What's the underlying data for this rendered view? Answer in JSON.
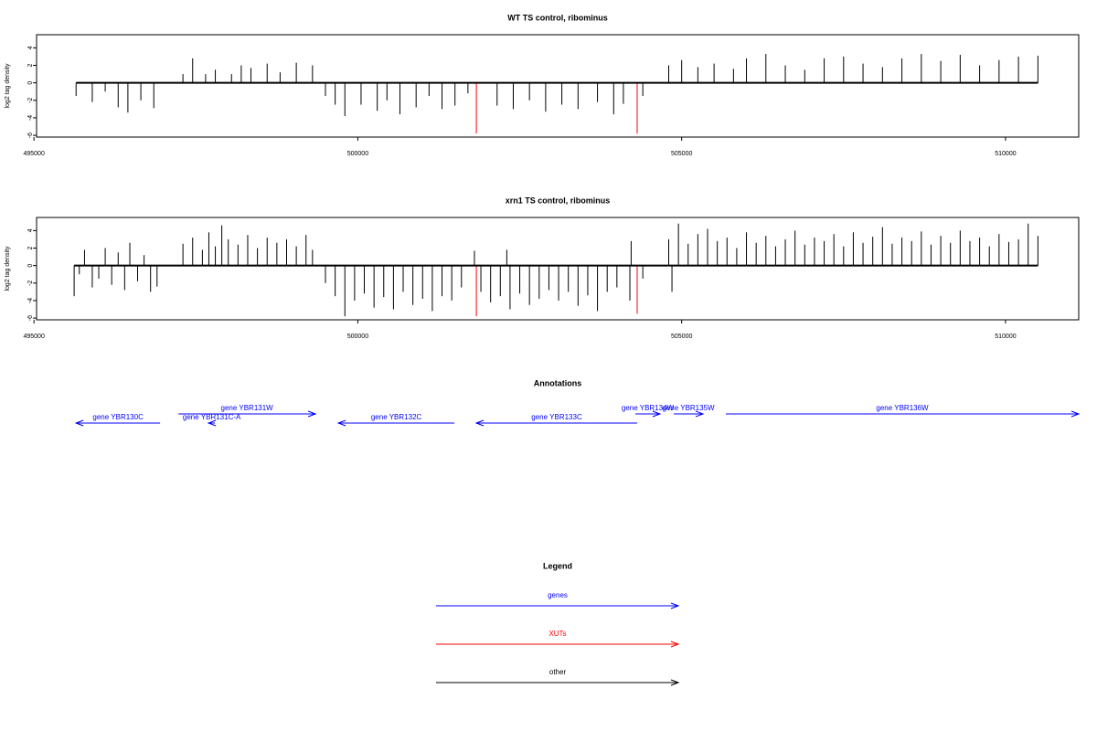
{
  "chart_data": [
    {
      "type": "bar",
      "title": "WT TS control, ribominus",
      "y_label": "log2 tag density",
      "xlim": [
        495040,
        511130
      ],
      "xticks": [
        495000,
        500000,
        505000,
        510000
      ],
      "ylim": [
        -6.2,
        5.5
      ],
      "yticks": [
        -6,
        -4,
        -2,
        0,
        2,
        4
      ],
      "series": [
        {
          "color": "#000000",
          "x": [
            495650,
            495900,
            496100,
            496300,
            496450,
            496650,
            496850,
            497300,
            497450,
            497650,
            497800,
            498050,
            498200,
            498350,
            498600,
            498800,
            499050,
            499300,
            499500,
            499650,
            499800,
            500050,
            500300,
            500450,
            500650,
            500900,
            501100,
            501300,
            501500,
            501700,
            502150,
            502400,
            502650,
            502900,
            503150,
            503400,
            503700,
            503950,
            504100,
            504400,
            504800,
            505000,
            505250,
            505500,
            505800,
            506000,
            506300,
            506600,
            506900,
            507200,
            507500,
            507800,
            508100,
            508400,
            508700,
            509000,
            509300,
            509600,
            509900,
            510200,
            510500
          ],
          "values": [
            -1.5,
            -2.2,
            -1.0,
            -2.8,
            -3.4,
            -2.0,
            -2.9,
            1.0,
            2.8,
            1.0,
            1.5,
            1.0,
            2.0,
            1.7,
            2.2,
            1.2,
            2.3,
            2.0,
            -1.5,
            -2.5,
            -3.8,
            -2.5,
            -3.2,
            -2.0,
            -3.6,
            -2.8,
            -1.5,
            -3.0,
            -2.6,
            -1.2,
            -2.6,
            -3.0,
            -2.0,
            -3.3,
            -2.5,
            -3.0,
            -2.2,
            -3.6,
            -2.4,
            -1.5,
            2.0,
            2.6,
            1.8,
            2.2,
            1.6,
            2.8,
            3.3,
            2.0,
            1.5,
            2.8,
            3.0,
            2.2,
            1.8,
            2.8,
            3.3,
            2.5,
            3.2,
            2.0,
            2.6,
            3.0,
            3.1
          ]
        },
        {
          "color": "#ff0000",
          "x": [
            501830,
            504313
          ],
          "values": [
            -5.8,
            -5.8
          ]
        }
      ]
    },
    {
      "type": "bar",
      "title": "xrn1 TS control, ribominus",
      "y_label": "log2 tag density",
      "xlim": [
        495040,
        511130
      ],
      "xticks": [
        495000,
        500000,
        505000,
        510000
      ],
      "ylim": [
        -6.2,
        5.5
      ],
      "yticks": [
        -6,
        -4,
        -2,
        0,
        2,
        4
      ],
      "series": [
        {
          "color": "#000000",
          "x": [
            495620,
            495700,
            495780,
            495900,
            496000,
            496100,
            496200,
            496300,
            496400,
            496480,
            496600,
            496700,
            496800,
            496900,
            497300,
            497450,
            497600,
            497700,
            497800,
            497900,
            498000,
            498150,
            498300,
            498450,
            498600,
            498750,
            498900,
            499050,
            499200,
            499300,
            499500,
            499650,
            499800,
            499950,
            500100,
            500250,
            500400,
            500550,
            500700,
            500850,
            501000,
            501150,
            501300,
            501450,
            501600,
            501800,
            501900,
            502050,
            502200,
            502300,
            502350,
            502500,
            502650,
            502800,
            502950,
            503100,
            503250,
            503400,
            503550,
            503700,
            503850,
            504000,
            504200,
            504220,
            504400,
            504800,
            504850,
            504950,
            505100,
            505250,
            505400,
            505550,
            505700,
            505850,
            506000,
            506150,
            506300,
            506450,
            506600,
            506750,
            506900,
            507050,
            507200,
            507350,
            507500,
            507650,
            507800,
            507950,
            508100,
            508250,
            508400,
            508550,
            508700,
            508850,
            509000,
            509150,
            509300,
            509450,
            509600,
            509750,
            509900,
            510050,
            510200,
            510350,
            510500
          ],
          "values": [
            -3.5,
            -1.0,
            1.8,
            -2.5,
            -1.5,
            2.0,
            -2.2,
            1.5,
            -2.8,
            2.6,
            -1.8,
            1.2,
            -3.0,
            -2.4,
            2.5,
            3.2,
            1.8,
            3.8,
            2.2,
            4.6,
            3.0,
            2.4,
            3.5,
            2.0,
            3.2,
            2.6,
            3.0,
            2.2,
            3.5,
            1.8,
            -2.0,
            -3.5,
            -5.8,
            -4.0,
            -3.2,
            -4.8,
            -3.6,
            -5.0,
            -3.0,
            -4.5,
            -3.8,
            -5.2,
            -3.5,
            -4.0,
            -2.5,
            1.7,
            -3.0,
            -4.2,
            -3.5,
            1.8,
            -5.0,
            -3.2,
            -4.5,
            -3.8,
            -2.8,
            -4.0,
            -3.0,
            -4.6,
            -3.4,
            -5.2,
            -3.0,
            -2.5,
            -4.0,
            2.8,
            -1.5,
            3.0,
            -3.0,
            4.8,
            2.5,
            3.6,
            4.2,
            2.8,
            3.2,
            2.0,
            3.8,
            2.6,
            3.4,
            2.2,
            3.0,
            4.0,
            2.4,
            3.2,
            2.8,
            3.6,
            2.2,
            3.8,
            2.6,
            3.3,
            4.4,
            2.5,
            3.2,
            2.8,
            3.9,
            2.4,
            3.4,
            2.6,
            4.0,
            2.8,
            3.2,
            2.2,
            3.6,
            2.7,
            3.0,
            4.8,
            3.4
          ]
        },
        {
          "color": "#ff0000",
          "x": [
            501830,
            504313
          ],
          "values": [
            -5.8,
            -5.5
          ]
        }
      ]
    }
  ],
  "annotations": {
    "title": "Annotations",
    "color": "#0000ff",
    "genes": [
      {
        "label": "gene YBR130C",
        "start": 495649,
        "end": 496947,
        "strand": "-"
      },
      {
        "label": "gene YBR131W",
        "start": 497230,
        "end": 499346,
        "strand": "+"
      },
      {
        "label": "gene YBR131C-A",
        "start": 497695,
        "end": 497794,
        "strand": "-"
      },
      {
        "label": "gene YBR132C",
        "start": 499699,
        "end": 501491,
        "strand": "-"
      },
      {
        "label": "gene YBR133C",
        "start": 501829,
        "end": 504313,
        "strand": "-"
      },
      {
        "label": "gene YBR134W",
        "start": 504285,
        "end": 504665,
        "strand": "+"
      },
      {
        "label": "gene YBR135W",
        "start": 504877,
        "end": 505329,
        "strand": "+"
      },
      {
        "label": "gene YBR136W",
        "start": 505682,
        "end": 511130,
        "strand": "+"
      }
    ]
  },
  "legend": {
    "title": "Legend",
    "items": [
      {
        "label": "genes",
        "color": "#0000ff"
      },
      {
        "label": "XUTs",
        "color": "#ff0000"
      },
      {
        "label": "other",
        "color": "#000000"
      }
    ]
  }
}
